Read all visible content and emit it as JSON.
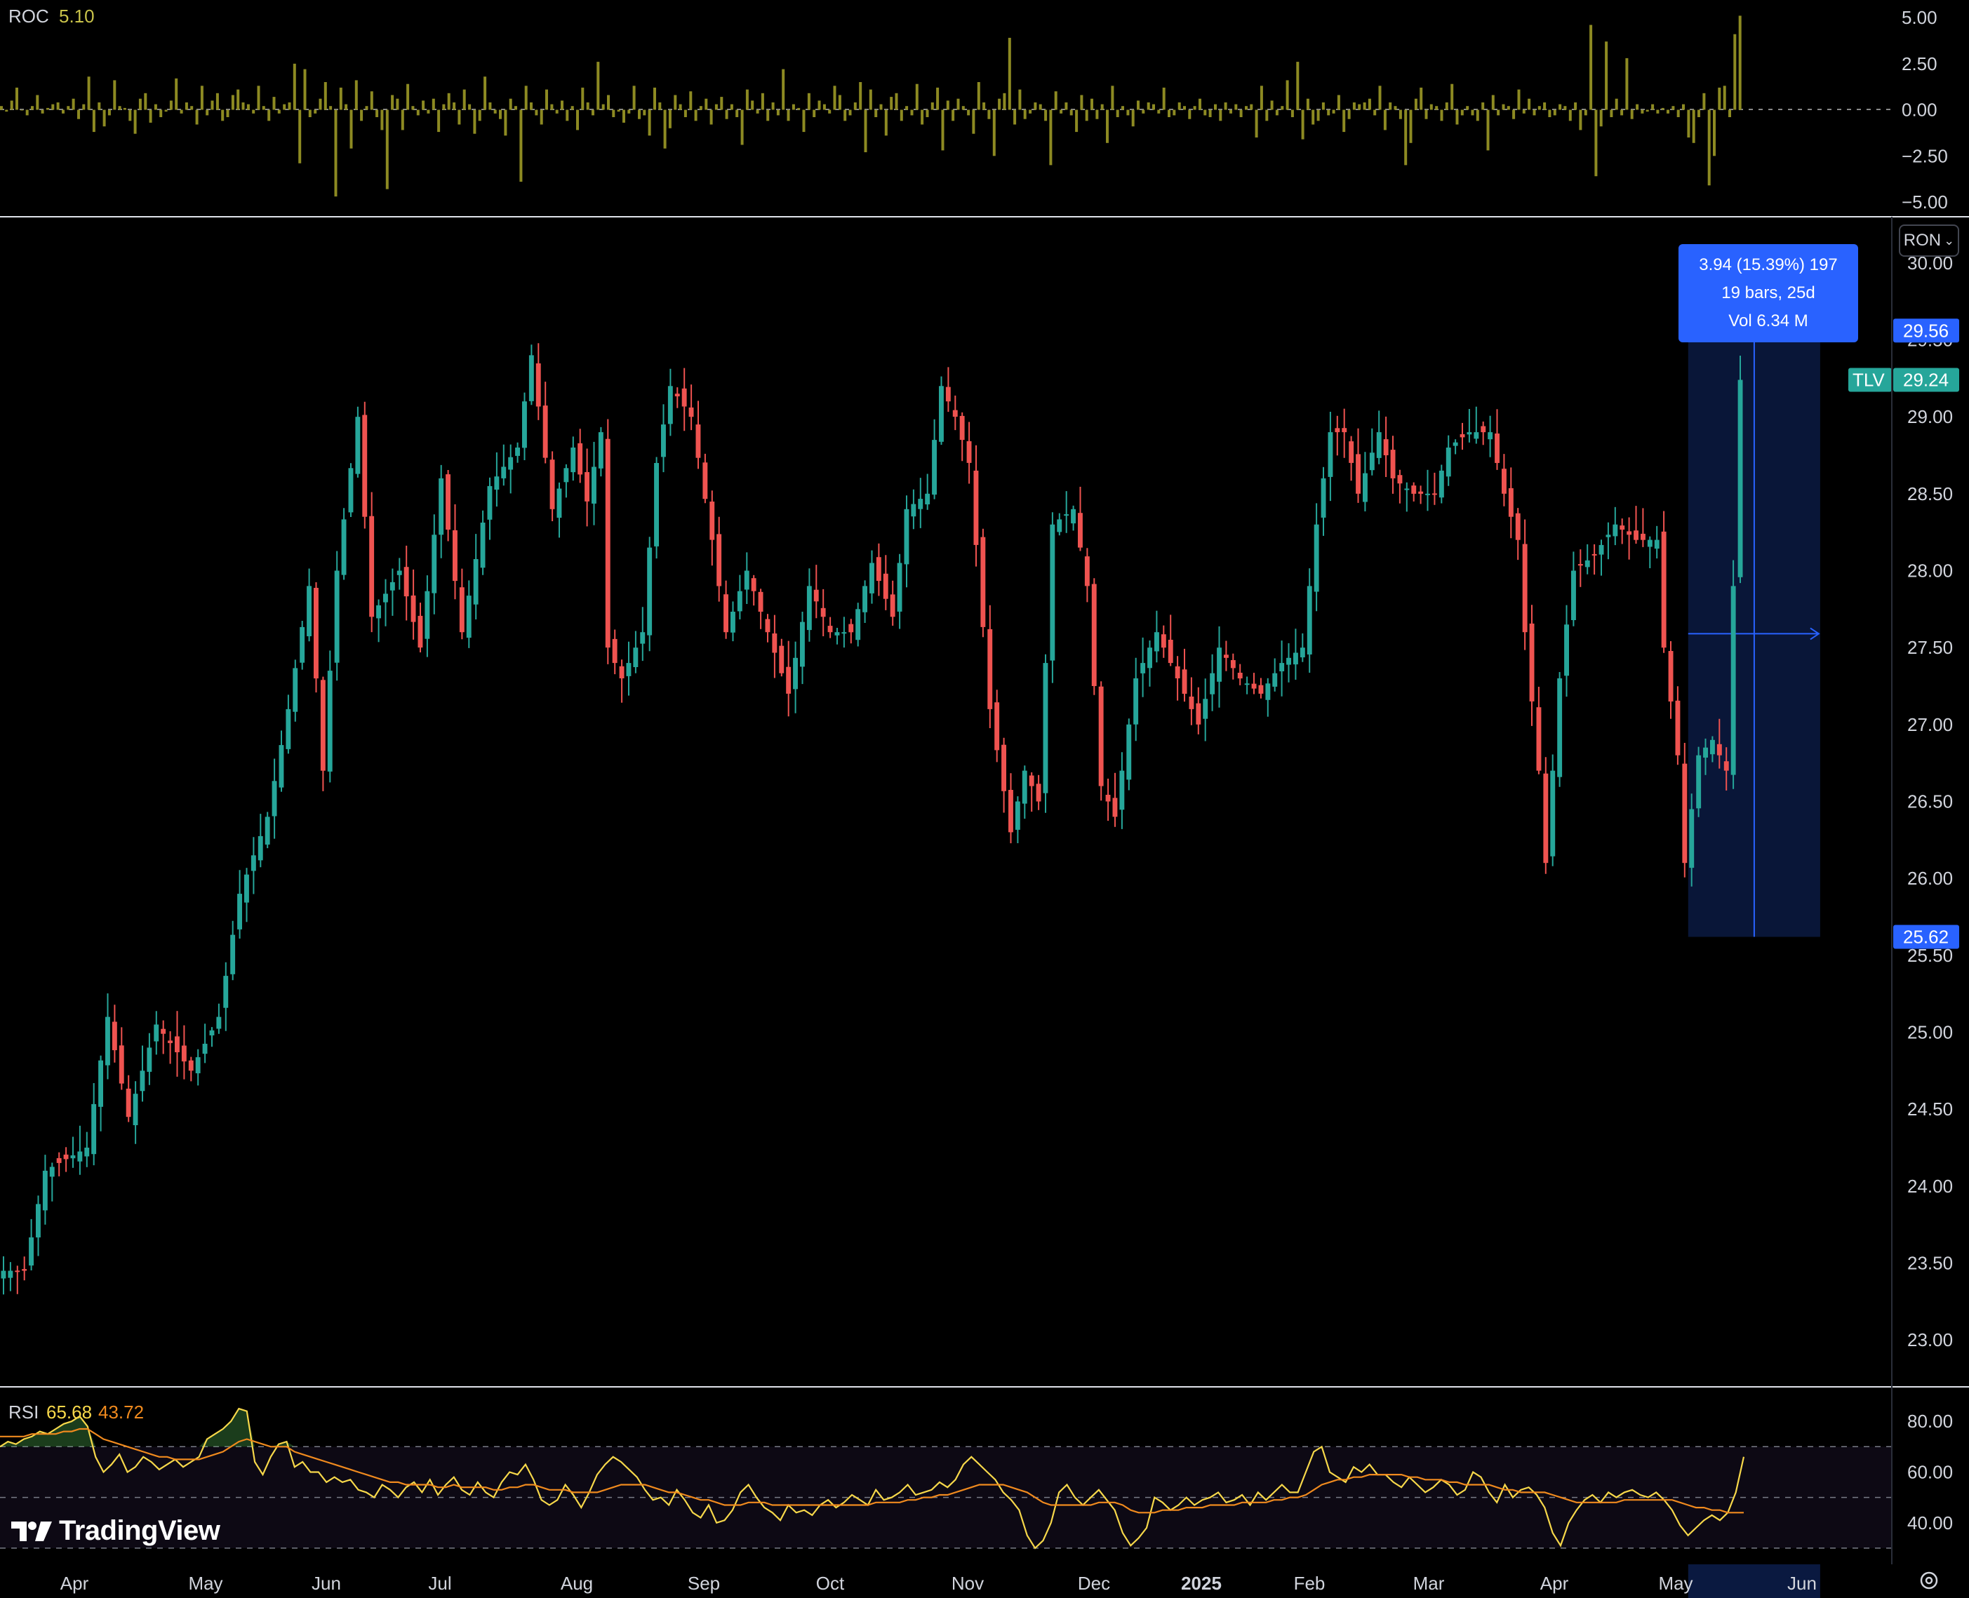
{
  "chart_data": [
    {
      "type": "bar",
      "panel": "ROC",
      "title": "ROC",
      "last_value": "5.10",
      "yticks": [
        "5.00",
        "2.50",
        "0.00",
        "−2.50",
        "−5.00"
      ],
      "ylim": [
        -5.0,
        5.0
      ],
      "color": "#8d8a22",
      "values": [
        0.2,
        -0.1,
        0.5,
        1.2,
        0.0,
        -0.3,
        0.2,
        0.8,
        -0.2,
        0.1,
        0.3,
        0.4,
        -0.2,
        0.2,
        0.6,
        -0.5,
        0.3,
        1.8,
        -1.2,
        0.4,
        -0.9,
        -0.3,
        1.6,
        0.2,
        0.1,
        -0.6,
        -1.3,
        0.6,
        0.9,
        -0.7,
        0.3,
        -0.4,
        -0.1,
        0.5,
        1.7,
        -0.2,
        0.4,
        0.2,
        -0.8,
        1.3,
        -0.3,
        0.5,
        0.9,
        -0.6,
        -0.4,
        0.8,
        1.1,
        0.4,
        0.3,
        -0.2,
        1.3,
        0.2,
        -0.6,
        0.7,
        -0.2,
        0.3,
        0.4,
        2.5,
        -2.9,
        2.2,
        -0.4,
        -0.2,
        0.6,
        1.5,
        0.2,
        -4.7,
        1.2,
        0.3,
        -2.1,
        1.6,
        -0.6,
        0.2,
        1.0,
        -0.4,
        -1.1,
        -4.3,
        0.8,
        0.6,
        -1.1,
        1.4,
        0.2,
        -0.3,
        0.5,
        -0.2,
        0.6,
        -1.2,
        0.3,
        0.9,
        0.4,
        -0.8,
        1.1,
        0.3,
        -1.3,
        -0.6,
        1.8,
        0.4,
        -0.2,
        -0.5,
        -1.4,
        0.6,
        0.2,
        -3.9,
        1.3,
        0.4,
        -0.3,
        -0.8,
        1.1,
        0.3,
        -0.2,
        0.5,
        -0.6,
        0.2,
        -1.1,
        1.2,
        0.4,
        -0.3,
        2.6,
        0.3,
        0.8,
        -0.4,
        -0.1,
        -0.7,
        -0.2,
        1.3,
        -0.5,
        -0.3,
        -1.4,
        1.2,
        0.4,
        -2.1,
        -1.0,
        0.8,
        0.3,
        -0.4,
        1.0,
        -0.6,
        0.2,
        0.6,
        -0.8,
        0.3,
        0.7,
        -0.5,
        0.3,
        -0.4,
        -1.9,
        1.1,
        0.5,
        -0.2,
        0.9,
        -0.6,
        0.4,
        -0.3,
        2.2,
        -0.6,
        0.3,
        0.1,
        -1.2,
        0.9,
        -0.4,
        0.5,
        0.3,
        -0.2,
        1.3,
        0.8,
        -0.6,
        -0.3,
        0.4,
        1.5,
        -2.3,
        1.1,
        -0.4,
        0.3,
        -1.4,
        0.7,
        0.9,
        -0.6,
        0.2,
        -0.3,
        1.4,
        -0.8,
        -0.4,
        0.4,
        1.2,
        -2.2,
        0.5,
        -0.6,
        0.6,
        0.2,
        -0.3,
        -1.3,
        1.5,
        0.4,
        -0.5,
        -2.5,
        0.6,
        0.9,
        3.9,
        -0.8,
        1.1,
        -0.5,
        -0.2,
        0.4,
        0.3,
        -0.6,
        -3.0,
        1.0,
        -0.2,
        0.4,
        -0.3,
        -1.2,
        0.8,
        -0.6,
        0.6,
        -0.5,
        0.3,
        -1.8,
        1.3,
        -0.4,
        0.2,
        -0.3,
        -0.9,
        0.5,
        -0.2,
        0.4,
        0.3,
        -0.2,
        1.2,
        -0.4,
        -0.3,
        0.4,
        0.2,
        -0.5,
        0.2,
        0.6,
        -0.3,
        -0.4,
        0.3,
        -0.6,
        0.4,
        -0.2,
        0.3,
        -0.4,
        0.2,
        0.3,
        -1.5,
        1.3,
        -0.6,
        0.5,
        -0.3,
        0.2,
        1.6,
        -0.4,
        2.6,
        -1.6,
        0.6,
        -0.8,
        -0.6,
        0.4,
        -0.3,
        -0.2,
        0.8,
        -1.2,
        -0.5,
        0.4,
        0.3,
        0.4,
        0.6,
        -0.3,
        1.3,
        -1.1,
        0.4,
        0.2,
        -0.5,
        -3.0,
        -1.8,
        0.6,
        1.2,
        -0.5,
        0.3,
        0.2,
        -0.6,
        0.4,
        1.4,
        -0.8,
        -0.3,
        0.2,
        -0.3,
        -0.6,
        0.4,
        -2.2,
        0.8,
        -0.3,
        0.3,
        0.2,
        -0.5,
        1.1,
        -0.2,
        0.6,
        -0.3,
        0.2,
        0.4,
        -0.4,
        -0.3,
        0.3,
        0.2,
        -0.6,
        0.4,
        -1.1,
        -0.3,
        4.6,
        -3.6,
        -0.9,
        3.7,
        -0.4,
        0.6,
        -0.3,
        2.8,
        -0.5,
        0.3,
        -0.2,
        -0.1,
        0.3,
        -0.2,
        0.1,
        -0.2,
        0.2,
        -0.4,
        0.3,
        -1.5,
        -1.8,
        -0.4,
        0.9,
        -4.1,
        -2.5,
        1.2,
        1.3,
        -0.4,
        4.1,
        5.1
      ]
    },
    {
      "type": "candlestick",
      "panel": "price",
      "symbol": "TLV",
      "currency": "RON",
      "last_price": "29.24",
      "yticks": [
        "30.00",
        "29.50",
        "29.00",
        "28.50",
        "28.00",
        "27.50",
        "27.00",
        "26.50",
        "26.00",
        "25.50",
        "25.00",
        "24.50",
        "24.00",
        "23.50",
        "23.00"
      ],
      "ylim": [
        22.75,
        30.25
      ],
      "x_labels": [
        "Apr",
        "May",
        "Jun",
        "Jul",
        "Aug",
        "Sep",
        "Oct",
        "Nov",
        "Dec",
        "2025",
        "Feb",
        "Mar",
        "Apr",
        "May",
        "Jun"
      ],
      "up_color": "#26a69a",
      "down_color": "#ef5350",
      "anchors": [
        [
          0,
          23.45
        ],
        [
          3,
          23.45
        ],
        [
          6,
          24.1
        ],
        [
          12,
          24.25
        ],
        [
          15,
          25.1
        ],
        [
          18,
          24.45
        ],
        [
          22,
          25.05
        ],
        [
          27,
          24.75
        ],
        [
          31,
          25.1
        ],
        [
          34,
          25.9
        ],
        [
          38,
          26.4
        ],
        [
          41,
          27.1
        ],
        [
          44,
          27.9
        ],
        [
          46,
          26.7
        ],
        [
          48,
          28.0
        ],
        [
          51,
          29.0
        ],
        [
          53,
          27.7
        ],
        [
          57,
          28.0
        ],
        [
          60,
          27.5
        ],
        [
          63,
          28.6
        ],
        [
          66,
          27.6
        ],
        [
          70,
          28.55
        ],
        [
          74,
          28.8
        ],
        [
          76,
          29.4
        ],
        [
          79,
          28.4
        ],
        [
          82,
          28.8
        ],
        [
          84,
          28.45
        ],
        [
          86,
          28.9
        ],
        [
          87,
          27.5
        ],
        [
          89,
          27.3
        ],
        [
          92,
          27.6
        ],
        [
          94,
          28.7
        ],
        [
          96,
          29.2
        ],
        [
          99,
          29.0
        ],
        [
          102,
          28.2
        ],
        [
          104,
          27.6
        ],
        [
          107,
          28.0
        ],
        [
          110,
          27.6
        ],
        [
          113,
          27.2
        ],
        [
          116,
          27.9
        ],
        [
          119,
          27.6
        ],
        [
          122,
          27.6
        ],
        [
          125,
          28.05
        ],
        [
          128,
          27.7
        ],
        [
          130,
          28.4
        ],
        [
          133,
          28.5
        ],
        [
          135,
          29.2
        ],
        [
          137,
          29.0
        ],
        [
          139,
          28.7
        ],
        [
          142,
          27.1
        ],
        [
          145,
          26.3
        ],
        [
          147,
          26.7
        ],
        [
          149,
          26.5
        ],
        [
          151,
          28.3
        ],
        [
          154,
          28.4
        ],
        [
          156,
          27.9
        ],
        [
          158,
          26.6
        ],
        [
          160,
          26.4
        ],
        [
          163,
          27.3
        ],
        [
          166,
          27.6
        ],
        [
          169,
          27.3
        ],
        [
          172,
          27.0
        ],
        [
          175,
          27.5
        ],
        [
          178,
          27.3
        ],
        [
          181,
          27.2
        ],
        [
          184,
          27.4
        ],
        [
          187,
          27.5
        ],
        [
          189,
          28.3
        ],
        [
          191,
          28.9
        ],
        [
          193,
          28.9
        ],
        [
          195,
          28.5
        ],
        [
          198,
          28.9
        ],
        [
          200,
          28.6
        ],
        [
          203,
          28.5
        ],
        [
          206,
          28.5
        ],
        [
          208,
          28.8
        ],
        [
          211,
          28.9
        ],
        [
          214,
          28.9
        ],
        [
          216,
          28.5
        ],
        [
          218,
          28.2
        ],
        [
          219,
          27.6
        ],
        [
          221,
          26.7
        ],
        [
          222,
          26.1
        ],
        [
          224,
          27.3
        ],
        [
          226,
          28.0
        ],
        [
          229,
          28.1
        ],
        [
          232,
          28.3
        ],
        [
          235,
          28.2
        ],
        [
          238,
          28.2
        ],
        [
          239,
          27.5
        ],
        [
          241,
          26.8
        ],
        [
          242,
          26.1
        ],
        [
          244,
          26.8
        ],
        [
          246,
          26.9
        ],
        [
          248,
          26.7
        ],
        [
          249,
          27.9
        ],
        [
          250,
          29.24
        ]
      ]
    },
    {
      "type": "line",
      "panel": "RSI",
      "title": "RSI",
      "values_label": [
        "65.68",
        "43.72"
      ],
      "yticks": [
        "80.00",
        "60.00",
        "40.00"
      ],
      "ylim": [
        25,
        90
      ],
      "band": [
        30,
        70
      ],
      "series": [
        {
          "name": "65.68",
          "color": "#f7d84a",
          "values": [
            70,
            72,
            71,
            73,
            74,
            76,
            75,
            77,
            79,
            80,
            82,
            78,
            66,
            60,
            63,
            67,
            60,
            62,
            66,
            64,
            61,
            63,
            65,
            62,
            64,
            66,
            73,
            75,
            77,
            80,
            85,
            84,
            64,
            59,
            66,
            71,
            72,
            62,
            64,
            60,
            60,
            56,
            58,
            56,
            57,
            53,
            52,
            50,
            55,
            53,
            50,
            54,
            56,
            52,
            57,
            51,
            55,
            58,
            53,
            51,
            56,
            52,
            50,
            56,
            60,
            59,
            63,
            57,
            49,
            47,
            49,
            55,
            51,
            46,
            52,
            59,
            63,
            66,
            64,
            61,
            58,
            53,
            49,
            50,
            47,
            53,
            49,
            44,
            42,
            47,
            40,
            41,
            45,
            52,
            55,
            50,
            46,
            44,
            41,
            47,
            44,
            45,
            43,
            47,
            49,
            46,
            48,
            51,
            49,
            47,
            53,
            49,
            50,
            52,
            55,
            51,
            52,
            53,
            56,
            54,
            57,
            63,
            66,
            63,
            60,
            57,
            52,
            49,
            45,
            35,
            30,
            33,
            40,
            52,
            55,
            50,
            47,
            50,
            53,
            49,
            45,
            36,
            31,
            34,
            38,
            50,
            48,
            45,
            47,
            50,
            47,
            49,
            50,
            52,
            48,
            49,
            51,
            47,
            52,
            49,
            52,
            55,
            52,
            52,
            60,
            68,
            70,
            60,
            58,
            56,
            62,
            60,
            63,
            59,
            59,
            56,
            54,
            58,
            55,
            52,
            54,
            57,
            55,
            51,
            53,
            60,
            58,
            52,
            48,
            55,
            50,
            53,
            54,
            51,
            46,
            36,
            31,
            40,
            45,
            49,
            51,
            48,
            52,
            50,
            52,
            53,
            51,
            50,
            52,
            49,
            45,
            39,
            35,
            38,
            41,
            43,
            41,
            44,
            52,
            66
          ]
        },
        {
          "name": "43.72",
          "color": "#f08a1e",
          "values": [
            74,
            74,
            74,
            74,
            75,
            75,
            75,
            75,
            76,
            76,
            77,
            77,
            75,
            73,
            72,
            71,
            70,
            69,
            68,
            67,
            66,
            66,
            65,
            65,
            65,
            65,
            66,
            67,
            68,
            70,
            72,
            73,
            72,
            71,
            70,
            70,
            70,
            68,
            67,
            66,
            65,
            64,
            63,
            62,
            61,
            60,
            59,
            58,
            57,
            56,
            56,
            55,
            55,
            55,
            55,
            54,
            54,
            55,
            54,
            54,
            54,
            54,
            53,
            53,
            54,
            54,
            55,
            55,
            54,
            53,
            53,
            53,
            52,
            52,
            52,
            52,
            53,
            54,
            55,
            55,
            55,
            55,
            54,
            53,
            52,
            52,
            51,
            50,
            49,
            49,
            48,
            47,
            47,
            47,
            48,
            48,
            48,
            47,
            47,
            47,
            47,
            47,
            47,
            47,
            47,
            47,
            47,
            47,
            47,
            47,
            48,
            48,
            48,
            48,
            49,
            49,
            50,
            50,
            51,
            51,
            52,
            53,
            54,
            55,
            55,
            55,
            55,
            54,
            53,
            52,
            50,
            48,
            47,
            47,
            47,
            47,
            47,
            47,
            48,
            48,
            48,
            47,
            45,
            44,
            44,
            44,
            45,
            45,
            45,
            46,
            46,
            46,
            47,
            47,
            47,
            47,
            48,
            48,
            48,
            48,
            49,
            49,
            50,
            50,
            51,
            53,
            55,
            56,
            57,
            57,
            58,
            58,
            59,
            59,
            59,
            59,
            59,
            58,
            58,
            57,
            57,
            57,
            56,
            56,
            55,
            55,
            55,
            55,
            54,
            53,
            53,
            52,
            52,
            52,
            52,
            51,
            50,
            49,
            48,
            48,
            48,
            48,
            48,
            48,
            49,
            49,
            49,
            49,
            49,
            49,
            49,
            48,
            47,
            46,
            46,
            45,
            45,
            44,
            44,
            44
          ]
        }
      ]
    }
  ],
  "measure": {
    "line1": "3.94 (15.39%) 197",
    "line2": "19 bars, 25d",
    "line3": "Vol 6.34 M",
    "high_label": "29.56",
    "low_label": "25.62",
    "high": 29.56,
    "low": 25.62,
    "start_bar": 243,
    "end_bar": 261
  },
  "price_tag": {
    "symbol": "TLV",
    "value": "29.24"
  },
  "currency_button": "RON",
  "brand": "TradingView",
  "x_axis_labels_list": [
    "Apr",
    "May",
    "Jun",
    "Jul",
    "Aug",
    "Sep",
    "Oct",
    "Nov",
    "Dec",
    "2025",
    "Feb",
    "Mar",
    "Apr",
    "May",
    "Jun"
  ],
  "colors": {
    "background": "#000000",
    "up": "#26a69a",
    "down": "#ef5350",
    "roc": "#8d8a22",
    "accent": "#2962ff"
  }
}
